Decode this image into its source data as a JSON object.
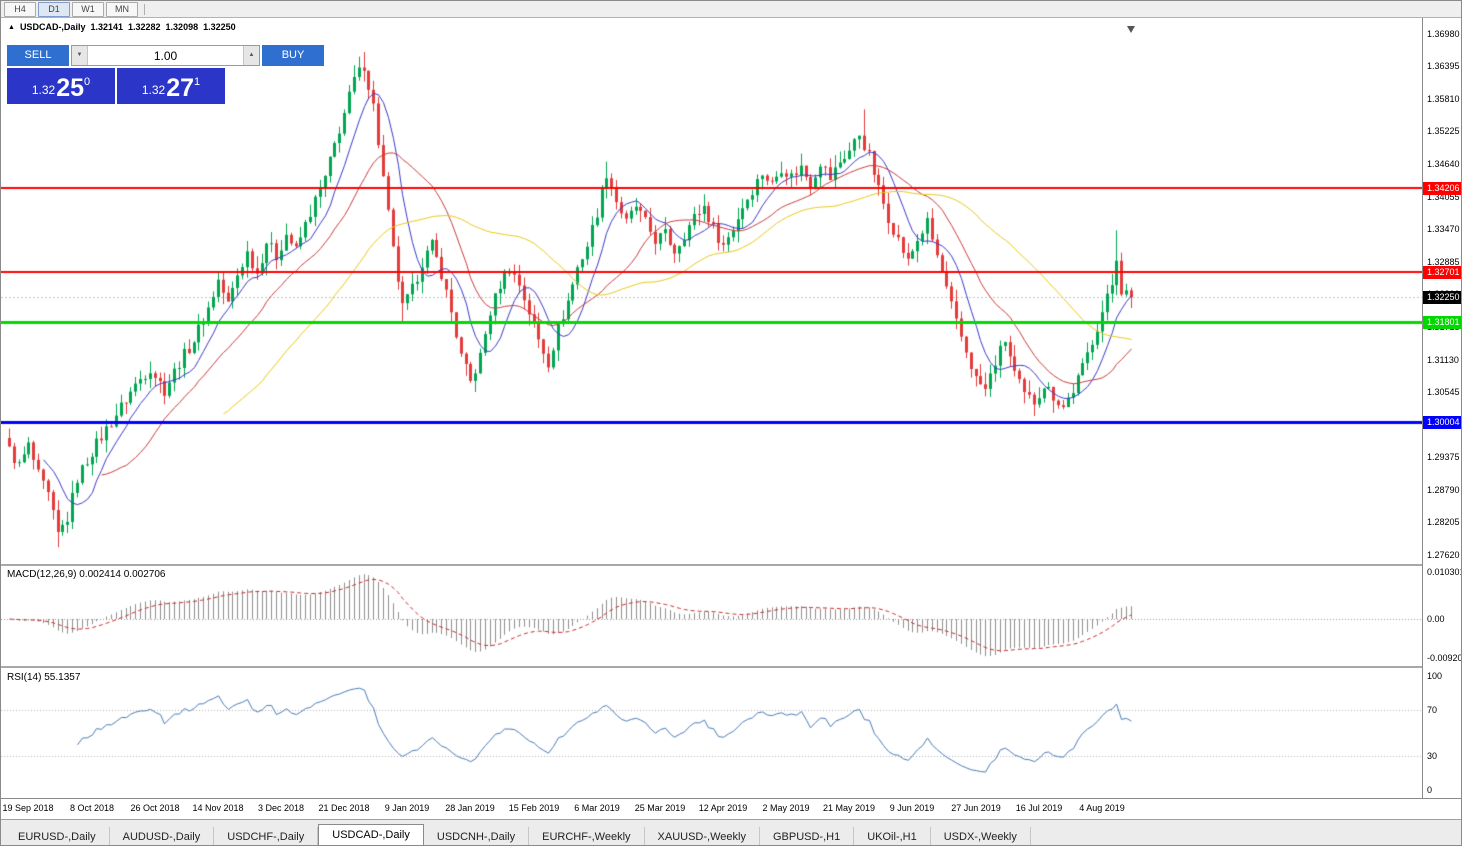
{
  "toolbar": {
    "timeframes": [
      "H4",
      "D1",
      "W1",
      "MN"
    ],
    "active": "D1"
  },
  "chart_header": {
    "symbol": "USDCAD-,Daily",
    "open": "1.32141",
    "high": "1.32282",
    "low": "1.32098",
    "close": "1.32250"
  },
  "trade_panel": {
    "sell_label": "SELL",
    "buy_label": "BUY",
    "volume": "1.00",
    "sell_price": {
      "prefix": "1.32",
      "big": "25",
      "sup": "0"
    },
    "buy_price": {
      "prefix": "1.32",
      "big": "27",
      "sup": "1"
    },
    "colors": {
      "button": "#2f6fd0",
      "price_box": "#2b35c8"
    }
  },
  "chart_data": {
    "type": "candlestick",
    "symbol": "USDCAD",
    "timeframe": "Daily",
    "n_candles": 232,
    "x0": 8,
    "dx": 4.857,
    "noise": 0.0022,
    "y_axis": {
      "max": 1.3726,
      "min": 1.2746
    },
    "y_ticks": [
      "1.36980",
      "1.36395",
      "1.35810",
      "1.35225",
      "1.34640",
      "1.34055",
      "1.33470",
      "1.32885",
      "1.32300",
      "1.31715",
      "1.31130",
      "1.30545",
      "1.29960",
      "1.29375",
      "1.28790",
      "1.28205",
      "1.27620"
    ],
    "price_path_anchors": [
      [
        0,
        1.295
      ],
      [
        2,
        1.2922
      ],
      [
        4,
        1.2958
      ],
      [
        6,
        1.2905
      ],
      [
        8,
        1.2868
      ],
      [
        10,
        1.2798
      ],
      [
        12,
        1.2828
      ],
      [
        14,
        1.29
      ],
      [
        17,
        1.2948
      ],
      [
        20,
        1.2988
      ],
      [
        23,
        1.3028
      ],
      [
        26,
        1.3068
      ],
      [
        29,
        1.3098
      ],
      [
        32,
        1.3058
      ],
      [
        35,
        1.3108
      ],
      [
        38,
        1.3148
      ],
      [
        41,
        1.3205
      ],
      [
        43,
        1.3255
      ],
      [
        45,
        1.3212
      ],
      [
        47,
        1.3265
      ],
      [
        49,
        1.3305
      ],
      [
        51,
        1.3268
      ],
      [
        53,
        1.3325
      ],
      [
        55,
        1.3298
      ],
      [
        57,
        1.3338
      ],
      [
        59,
        1.3308
      ],
      [
        61,
        1.3355
      ],
      [
        63,
        1.3398
      ],
      [
        65,
        1.3438
      ],
      [
        67,
        1.3498
      ],
      [
        69,
        1.3555
      ],
      [
        71,
        1.3615
      ],
      [
        73,
        1.3642
      ],
      [
        75,
        1.3568
      ],
      [
        77,
        1.3438
      ],
      [
        79,
        1.3308
      ],
      [
        81,
        1.3205
      ],
      [
        83,
        1.3238
      ],
      [
        85,
        1.3288
      ],
      [
        87,
        1.3318
      ],
      [
        89,
        1.3268
      ],
      [
        91,
        1.3198
      ],
      [
        93,
        1.3118
      ],
      [
        95,
        1.3072
      ],
      [
        97,
        1.3118
      ],
      [
        99,
        1.3198
      ],
      [
        101,
        1.3248
      ],
      [
        103,
        1.3278
      ],
      [
        105,
        1.3248
      ],
      [
        107,
        1.3198
      ],
      [
        109,
        1.3148
      ],
      [
        111,
        1.3108
      ],
      [
        113,
        1.3168
      ],
      [
        115,
        1.3218
      ],
      [
        117,
        1.3278
      ],
      [
        119,
        1.3318
      ],
      [
        121,
        1.3378
      ],
      [
        123,
        1.3448
      ],
      [
        125,
        1.3398
      ],
      [
        127,
        1.3358
      ],
      [
        129,
        1.3388
      ],
      [
        131,
        1.3358
      ],
      [
        133,
        1.3328
      ],
      [
        135,
        1.3338
      ],
      [
        137,
        1.3308
      ],
      [
        139,
        1.3338
      ],
      [
        141,
        1.3368
      ],
      [
        143,
        1.3388
      ],
      [
        145,
        1.3348
      ],
      [
        147,
        1.3318
      ],
      [
        149,
        1.3348
      ],
      [
        151,
        1.3388
      ],
      [
        153,
        1.3418
      ],
      [
        155,
        1.3448
      ],
      [
        157,
        1.3428
      ],
      [
        159,
        1.3458
      ],
      [
        161,
        1.3442
      ],
      [
        163,
        1.3458
      ],
      [
        165,
        1.3428
      ],
      [
        167,
        1.3468
      ],
      [
        169,
        1.3438
      ],
      [
        171,
        1.3468
      ],
      [
        173,
        1.3488
      ],
      [
        175,
        1.3518
      ],
      [
        177,
        1.3478
      ],
      [
        179,
        1.3418
      ],
      [
        181,
        1.3368
      ],
      [
        183,
        1.3328
      ],
      [
        185,
        1.3288
      ],
      [
        187,
        1.3328
      ],
      [
        189,
        1.3358
      ],
      [
        191,
        1.3298
      ],
      [
        193,
        1.3238
      ],
      [
        195,
        1.3178
      ],
      [
        197,
        1.3128
      ],
      [
        199,
        1.3078
      ],
      [
        201,
        1.3058
      ],
      [
        203,
        1.3108
      ],
      [
        205,
        1.3148
      ],
      [
        207,
        1.3088
      ],
      [
        209,
        1.3048
      ],
      [
        211,
        1.3038
      ],
      [
        213,
        1.3068
      ],
      [
        215,
        1.3048
      ],
      [
        217,
        1.3028
      ],
      [
        219,
        1.3058
      ],
      [
        221,
        1.3098
      ],
      [
        223,
        1.3148
      ],
      [
        225,
        1.3198
      ],
      [
        227,
        1.3248
      ],
      [
        228,
        1.3298
      ],
      [
        229,
        1.3238
      ],
      [
        231,
        1.3225
      ]
    ],
    "special_wicks": [
      {
        "i": 10,
        "low": 1.2776
      },
      {
        "i": 73,
        "high": 1.3665
      },
      {
        "i": 81,
        "low": 1.318
      },
      {
        "i": 123,
        "high": 1.3468
      },
      {
        "i": 176,
        "high": 1.3562
      },
      {
        "i": 228,
        "high": 1.3345
      }
    ],
    "levels": [
      {
        "price": 1.34206,
        "label": "1.34206",
        "color": "#ff0000",
        "thickness": 2
      },
      {
        "price": 1.32701,
        "label": "1.32701",
        "color": "#ff0000",
        "thickness": 2
      },
      {
        "price": 1.31801,
        "label": "1.31801",
        "color": "#00d800",
        "thickness": 3
      },
      {
        "price": 1.30004,
        "label": "1.30004",
        "color": "#0000ff",
        "thickness": 3
      }
    ],
    "current_price": {
      "price": 1.3225,
      "label": "1.32250",
      "color": "#000000"
    },
    "candle_colors": {
      "up": "#00a651",
      "down": "#e33b3b"
    },
    "moving_averages": [
      {
        "period": 8,
        "color": "#3a3ac8"
      },
      {
        "period": 20,
        "color": "#c83c3c"
      },
      {
        "period": 45,
        "color": "#e8c818"
      }
    ],
    "dates": [
      {
        "label": "19 Sep 2018",
        "i": 4
      },
      {
        "label": "8 Oct 2018",
        "i": 17
      },
      {
        "label": "26 Oct 2018",
        "i": 30
      },
      {
        "label": "14 Nov 2018",
        "i": 43
      },
      {
        "label": "3 Dec 2018",
        "i": 56
      },
      {
        "label": "21 Dec 2018",
        "i": 69
      },
      {
        "label": "9 Jan 2019",
        "i": 82
      },
      {
        "label": "28 Jan 2019",
        "i": 95
      },
      {
        "label": "15 Feb 2019",
        "i": 108
      },
      {
        "label": "6 Mar 2019",
        "i": 121
      },
      {
        "label": "25 Mar 2019",
        "i": 134
      },
      {
        "label": "12 Apr 2019",
        "i": 147
      },
      {
        "label": "2 May 2019",
        "i": 160
      },
      {
        "label": "21 May 2019",
        "i": 173
      },
      {
        "label": "9 Jun 2019",
        "i": 186
      },
      {
        "label": "27 Jun 2019",
        "i": 199
      },
      {
        "label": "16 Jul 2019",
        "i": 212
      },
      {
        "label": "4 Aug 2019",
        "i": 225
      }
    ]
  },
  "macd_panel": {
    "label": "MACD(12,26,9) 0.002414 0.002706",
    "fast": 12,
    "slow": 26,
    "signal_period": 9,
    "value": "0.002414",
    "signal_value": "0.002706",
    "axis": {
      "max": "0.0103011",
      "mid": "0.00",
      "min": "-0.0092030"
    },
    "colors": {
      "histogram": "#8f8f8f",
      "signal": "#cc2a2a"
    }
  },
  "rsi_panel": {
    "label": "RSI(14) 55.1357",
    "period": 14,
    "value": "55.1357",
    "levels": [
      70,
      30
    ],
    "axis_labels": [
      "100",
      "70",
      "30",
      "0"
    ],
    "color": "#4a7ab5"
  },
  "bottom_tabs": [
    "EURUSD-,Daily",
    "AUDUSD-,Daily",
    "USDCHF-,Daily",
    "USDCAD-,Daily",
    "USDCNH-,Daily",
    "EURCHF-,Weekly",
    "XAUUSD-,Weekly",
    "GBPUSD-,H1",
    "UKOil-,H1",
    "USDX-,Weekly"
  ],
  "active_tab": "USDCAD-,Daily"
}
